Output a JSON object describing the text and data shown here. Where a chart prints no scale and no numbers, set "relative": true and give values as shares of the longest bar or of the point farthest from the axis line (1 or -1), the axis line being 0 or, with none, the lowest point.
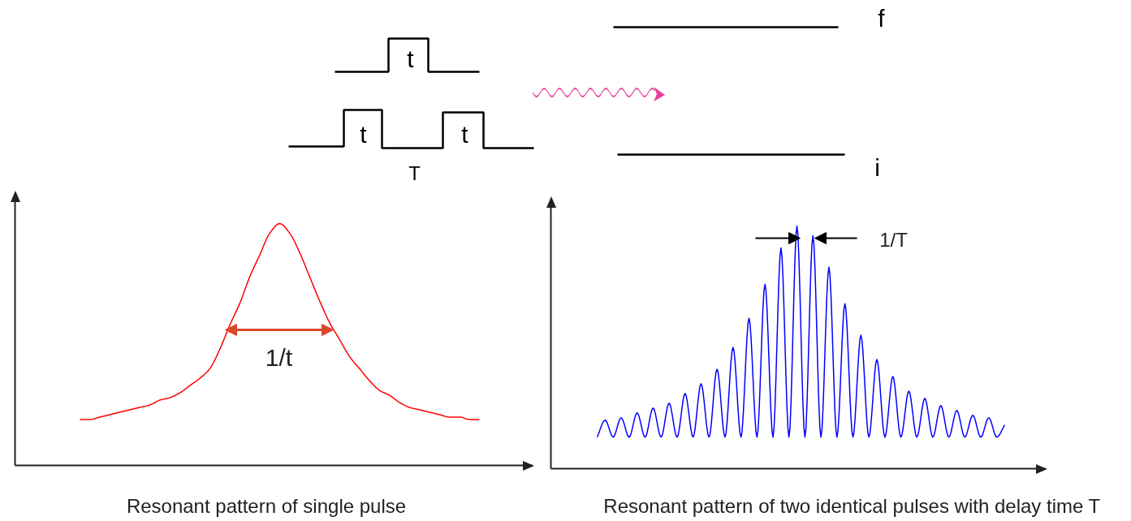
{
  "chart_data": [
    {
      "type": "other",
      "annotations": [
        "t",
        "t",
        "t",
        "T",
        "f",
        "i"
      ]
    },
    {
      "type": "line",
      "title": "Resonant pattern of single pulse",
      "relative": true,
      "annotations": [
        "1/t"
      ],
      "categories": [
        null,
        null,
        null,
        null,
        null,
        null,
        null,
        null,
        null,
        null,
        null,
        null,
        null,
        null,
        null,
        null,
        null,
        null,
        null,
        null,
        null,
        null,
        null,
        null,
        null,
        null,
        null,
        null,
        null,
        null,
        null,
        null,
        null,
        null,
        null,
        null,
        null,
        null,
        null,
        null,
        null
      ],
      "series": [
        {
          "color": "#ff0000",
          "values": [
            0.19,
            0.19,
            0.2,
            0.21,
            0.22,
            0.23,
            0.24,
            0.25,
            0.27,
            0.28,
            0.3,
            0.33,
            0.36,
            0.4,
            0.48,
            0.58,
            0.67,
            0.78,
            0.87,
            0.96,
            1.0,
            0.96,
            0.88,
            0.78,
            0.68,
            0.59,
            0.52,
            0.45,
            0.4,
            0.35,
            0.31,
            0.29,
            0.26,
            0.24,
            0.23,
            0.22,
            0.21,
            0.2,
            0.2,
            0.19,
            0.19
          ]
        }
      ]
    },
    {
      "type": "line",
      "title": "Resonant pattern of two identical pulses with delay time T",
      "relative": true,
      "annotations": [
        "1/T"
      ],
      "categories": [
        null,
        null,
        null,
        null,
        null,
        null,
        null,
        null,
        null,
        null,
        null,
        null,
        null,
        null,
        null,
        null,
        null,
        null,
        null,
        null,
        null,
        null,
        null,
        null,
        null,
        null,
        null,
        null,
        null,
        null,
        null,
        null,
        null,
        null,
        null,
        null,
        null,
        null,
        null,
        null,
        null,
        null,
        null,
        null,
        null,
        null,
        null,
        null,
        null,
        null,
        null,
        null
      ],
      "series": [
        {
          "color": "#0000ff",
          "values": [
            0.13,
            0.2,
            0.13,
            0.21,
            0.13,
            0.23,
            0.13,
            0.25,
            0.13,
            0.27,
            0.13,
            0.31,
            0.13,
            0.35,
            0.13,
            0.41,
            0.13,
            0.5,
            0.13,
            0.62,
            0.13,
            0.76,
            0.13,
            0.91,
            0.13,
            1.0,
            0.13,
            0.96,
            0.13,
            0.83,
            0.13,
            0.68,
            0.13,
            0.55,
            0.13,
            0.45,
            0.13,
            0.38,
            0.13,
            0.32,
            0.13,
            0.29,
            0.13,
            0.26,
            0.13,
            0.24,
            0.13,
            0.22,
            0.13,
            0.21,
            0.13,
            0.18
          ]
        }
      ]
    }
  ]
}
